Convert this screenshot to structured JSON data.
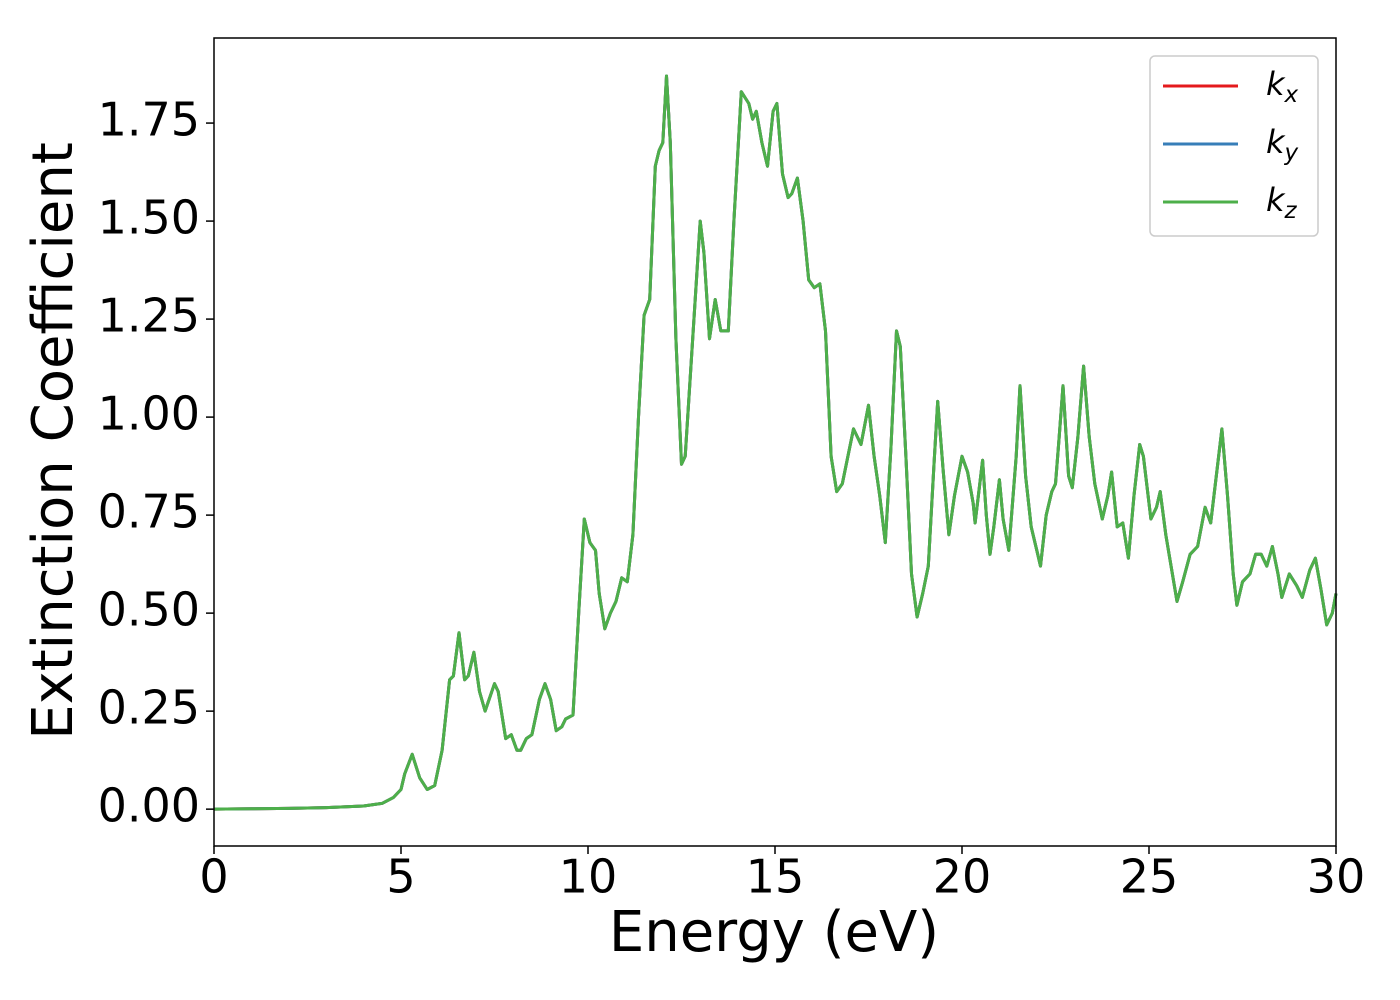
{
  "chart_data": {
    "type": "line",
    "xlabel": "Energy (eV)",
    "ylabel": "Extinction Coefficient",
    "xlim": [
      0,
      30
    ],
    "ylim": [
      -0.094,
      1.967
    ],
    "xticks": [
      0,
      5,
      10,
      15,
      20,
      25,
      30
    ],
    "yticks": [
      {
        "value": 0,
        "label": "0.00"
      },
      0.25,
      {
        "value": 0.5,
        "label": "0.50"
      },
      0.75,
      {
        "value": 1,
        "label": "1.00"
      },
      1.25,
      {
        "value": 1.5,
        "label": "1.50"
      },
      1.75
    ],
    "legend": "upper right",
    "x": [
      0,
      1,
      2,
      3,
      4,
      4.5,
      4.8,
      5.0,
      5.1,
      5.3,
      5.5,
      5.7,
      5.9,
      6.1,
      6.3,
      6.4,
      6.55,
      6.7,
      6.8,
      6.95,
      7.1,
      7.25,
      7.5,
      7.6,
      7.8,
      7.95,
      8.1,
      8.2,
      8.35,
      8.5,
      8.7,
      8.85,
      9.0,
      9.15,
      9.3,
      9.4,
      9.6,
      9.75,
      9.9,
      10.05,
      10.2,
      10.3,
      10.45,
      10.6,
      10.75,
      10.9,
      11.05,
      11.2,
      11.35,
      11.5,
      11.65,
      11.8,
      11.9,
      12.0,
      12.1,
      12.2,
      12.35,
      12.5,
      12.6,
      12.8,
      13.0,
      13.1,
      13.25,
      13.4,
      13.55,
      13.75,
      13.9,
      14.1,
      14.3,
      14.4,
      14.5,
      14.65,
      14.8,
      14.95,
      15.05,
      15.2,
      15.35,
      15.45,
      15.6,
      15.75,
      15.9,
      16.05,
      16.2,
      16.35,
      16.5,
      16.65,
      16.8,
      16.95,
      17.1,
      17.3,
      17.5,
      17.65,
      17.8,
      17.95,
      18.1,
      18.25,
      18.35,
      18.5,
      18.65,
      18.8,
      18.95,
      19.1,
      19.25,
      19.35,
      19.5,
      19.65,
      19.8,
      20.0,
      20.15,
      20.3,
      20.35,
      20.55,
      20.65,
      20.75,
      20.85,
      21.0,
      21.1,
      21.25,
      21.45,
      21.55,
      21.7,
      21.85,
      22.0,
      22.1,
      22.25,
      22.4,
      22.5,
      22.6,
      22.7,
      22.85,
      22.95,
      23.1,
      23.25,
      23.4,
      23.55,
      23.75,
      23.9,
      24.0,
      24.15,
      24.3,
      24.45,
      24.6,
      24.75,
      24.85,
      25.05,
      25.2,
      25.3,
      25.45,
      25.75,
      25.9,
      26.1,
      26.3,
      26.5,
      26.65,
      26.8,
      26.95,
      27.1,
      27.25,
      27.35,
      27.5,
      27.7,
      27.85,
      28.0,
      28.15,
      28.3,
      28.45,
      28.55,
      28.75,
      28.95,
      29.1,
      29.3,
      29.45,
      29.6,
      29.75,
      29.9,
      30.0
    ],
    "series": [
      {
        "name": "kx",
        "color": "#e41a1c",
        "values": [
          0,
          0.001,
          0.002,
          0.004,
          0.008,
          0.015,
          0.03,
          0.05,
          0.09,
          0.14,
          0.08,
          0.05,
          0.06,
          0.15,
          0.33,
          0.34,
          0.45,
          0.33,
          0.34,
          0.4,
          0.3,
          0.25,
          0.32,
          0.3,
          0.18,
          0.19,
          0.15,
          0.15,
          0.18,
          0.19,
          0.28,
          0.32,
          0.28,
          0.2,
          0.21,
          0.23,
          0.24,
          0.5,
          0.74,
          0.68,
          0.66,
          0.55,
          0.46,
          0.5,
          0.53,
          0.59,
          0.58,
          0.7,
          1.0,
          1.26,
          1.3,
          1.64,
          1.68,
          1.7,
          1.87,
          1.7,
          1.2,
          0.88,
          0.9,
          1.2,
          1.5,
          1.42,
          1.2,
          1.3,
          1.22,
          1.22,
          1.5,
          1.83,
          1.8,
          1.76,
          1.78,
          1.7,
          1.64,
          1.78,
          1.8,
          1.62,
          1.56,
          1.57,
          1.61,
          1.5,
          1.35,
          1.33,
          1.34,
          1.22,
          0.9,
          0.81,
          0.83,
          0.9,
          0.97,
          0.93,
          1.03,
          0.9,
          0.8,
          0.68,
          0.92,
          1.22,
          1.18,
          0.9,
          0.6,
          0.49,
          0.55,
          0.62,
          0.88,
          1.04,
          0.86,
          0.7,
          0.8,
          0.9,
          0.86,
          0.78,
          0.73,
          0.89,
          0.75,
          0.65,
          0.72,
          0.84,
          0.74,
          0.66,
          0.9,
          1.08,
          0.85,
          0.72,
          0.66,
          0.62,
          0.75,
          0.81,
          0.83,
          0.95,
          1.08,
          0.85,
          0.82,
          0.95,
          1.13,
          0.95,
          0.83,
          0.74,
          0.8,
          0.86,
          0.72,
          0.73,
          0.64,
          0.8,
          0.93,
          0.9,
          0.74,
          0.77,
          0.81,
          0.7,
          0.53,
          0.58,
          0.65,
          0.67,
          0.77,
          0.73,
          0.85,
          0.97,
          0.8,
          0.6,
          0.52,
          0.58,
          0.6,
          0.65,
          0.65,
          0.62,
          0.67,
          0.6,
          0.54,
          0.6,
          0.57,
          0.54,
          0.61,
          0.64,
          0.56,
          0.47,
          0.5,
          0.55
        ]
      },
      {
        "name": "ky",
        "color": "#377eb8",
        "values": [
          0,
          0.001,
          0.002,
          0.004,
          0.008,
          0.015,
          0.03,
          0.05,
          0.09,
          0.14,
          0.08,
          0.05,
          0.06,
          0.15,
          0.33,
          0.34,
          0.45,
          0.33,
          0.34,
          0.4,
          0.3,
          0.25,
          0.32,
          0.3,
          0.18,
          0.19,
          0.15,
          0.15,
          0.18,
          0.19,
          0.28,
          0.32,
          0.28,
          0.2,
          0.21,
          0.23,
          0.24,
          0.5,
          0.74,
          0.68,
          0.66,
          0.55,
          0.46,
          0.5,
          0.53,
          0.59,
          0.58,
          0.7,
          1.0,
          1.26,
          1.3,
          1.64,
          1.68,
          1.7,
          1.87,
          1.7,
          1.2,
          0.88,
          0.9,
          1.2,
          1.5,
          1.42,
          1.2,
          1.3,
          1.22,
          1.22,
          1.5,
          1.83,
          1.8,
          1.76,
          1.78,
          1.7,
          1.64,
          1.78,
          1.8,
          1.62,
          1.56,
          1.57,
          1.61,
          1.5,
          1.35,
          1.33,
          1.34,
          1.22,
          0.9,
          0.81,
          0.83,
          0.9,
          0.97,
          0.93,
          1.03,
          0.9,
          0.8,
          0.68,
          0.92,
          1.22,
          1.18,
          0.9,
          0.6,
          0.49,
          0.55,
          0.62,
          0.88,
          1.04,
          0.86,
          0.7,
          0.8,
          0.9,
          0.86,
          0.78,
          0.73,
          0.89,
          0.75,
          0.65,
          0.72,
          0.84,
          0.74,
          0.66,
          0.9,
          1.08,
          0.85,
          0.72,
          0.66,
          0.62,
          0.75,
          0.81,
          0.83,
          0.95,
          1.08,
          0.85,
          0.82,
          0.95,
          1.13,
          0.95,
          0.83,
          0.74,
          0.8,
          0.86,
          0.72,
          0.73,
          0.64,
          0.8,
          0.93,
          0.9,
          0.74,
          0.77,
          0.81,
          0.7,
          0.53,
          0.58,
          0.65,
          0.67,
          0.77,
          0.73,
          0.85,
          0.97,
          0.8,
          0.6,
          0.52,
          0.58,
          0.6,
          0.65,
          0.65,
          0.62,
          0.67,
          0.6,
          0.54,
          0.6,
          0.57,
          0.54,
          0.61,
          0.64,
          0.56,
          0.47,
          0.5,
          0.55
        ]
      },
      {
        "name": "kz",
        "color": "#4daf4a",
        "values": [
          0,
          0.001,
          0.002,
          0.004,
          0.008,
          0.015,
          0.03,
          0.05,
          0.09,
          0.14,
          0.08,
          0.05,
          0.06,
          0.15,
          0.33,
          0.34,
          0.45,
          0.33,
          0.34,
          0.4,
          0.3,
          0.25,
          0.32,
          0.3,
          0.18,
          0.19,
          0.15,
          0.15,
          0.18,
          0.19,
          0.28,
          0.32,
          0.28,
          0.2,
          0.21,
          0.23,
          0.24,
          0.5,
          0.74,
          0.68,
          0.66,
          0.55,
          0.46,
          0.5,
          0.53,
          0.59,
          0.58,
          0.7,
          1.0,
          1.26,
          1.3,
          1.64,
          1.68,
          1.7,
          1.87,
          1.7,
          1.2,
          0.88,
          0.9,
          1.2,
          1.5,
          1.42,
          1.2,
          1.3,
          1.22,
          1.22,
          1.5,
          1.83,
          1.8,
          1.76,
          1.78,
          1.7,
          1.64,
          1.78,
          1.8,
          1.62,
          1.56,
          1.57,
          1.61,
          1.5,
          1.35,
          1.33,
          1.34,
          1.22,
          0.9,
          0.81,
          0.83,
          0.9,
          0.97,
          0.93,
          1.03,
          0.9,
          0.8,
          0.68,
          0.92,
          1.22,
          1.18,
          0.9,
          0.6,
          0.49,
          0.55,
          0.62,
          0.88,
          1.04,
          0.86,
          0.7,
          0.8,
          0.9,
          0.86,
          0.78,
          0.73,
          0.89,
          0.75,
          0.65,
          0.72,
          0.84,
          0.74,
          0.66,
          0.9,
          1.08,
          0.85,
          0.72,
          0.66,
          0.62,
          0.75,
          0.81,
          0.83,
          0.95,
          1.08,
          0.85,
          0.82,
          0.95,
          1.13,
          0.95,
          0.83,
          0.74,
          0.8,
          0.86,
          0.72,
          0.73,
          0.64,
          0.8,
          0.93,
          0.9,
          0.74,
          0.77,
          0.81,
          0.7,
          0.53,
          0.58,
          0.65,
          0.67,
          0.77,
          0.73,
          0.85,
          0.97,
          0.8,
          0.6,
          0.52,
          0.58,
          0.6,
          0.65,
          0.65,
          0.62,
          0.67,
          0.6,
          0.54,
          0.6,
          0.57,
          0.54,
          0.61,
          0.64,
          0.56,
          0.47,
          0.5,
          0.55
        ]
      }
    ]
  }
}
